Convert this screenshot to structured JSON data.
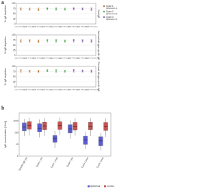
{
  "chart_data": [
    {
      "type": "errorbar",
      "panel_label": "a",
      "y_label": "% IgE depletion",
      "side_label": "Total IgE",
      "categories": [
        "Cycle 1 Fraction 1",
        "Cycle 1 Fraction 2",
        "Cycle 1 Fraction 3",
        "Cycle 2 Fraction 1",
        "Cycle 2 Fraction 2",
        "Cycle 2 Fraction 3",
        "Cycle 3 Fraction 1",
        "Cycle 3 Fraction 2",
        "Cycle 3 Fraction 3"
      ],
      "values": [
        73,
        72,
        71,
        74,
        73,
        72,
        74,
        73,
        72
      ],
      "errors": [
        6,
        5,
        6,
        5,
        6,
        5,
        6,
        5,
        6
      ],
      "colors": [
        "#b5651d",
        "#b5651d",
        "#b5651d",
        "#3aa13a",
        "#3aa13a",
        "#3aa13a",
        "#7b52ab",
        "#7b52ab",
        "#7b52ab"
      ],
      "ylim": [
        0,
        100
      ],
      "yticks": [
        0,
        25,
        50,
        75,
        100
      ],
      "grid": true,
      "legend": [
        {
          "name": "Cycle 1",
          "note": "(Apheresis 1-3)",
          "color": "#b5651d"
        },
        {
          "name": "Cycle 2",
          "note": "(Apheresis 4-6)",
          "color": "#3aa13a"
        },
        {
          "name": "Cycle 3",
          "note": "(Apheresis 7-9)",
          "color": "#7b52ab"
        }
      ]
    },
    {
      "type": "errorbar",
      "y_label": "% IgE depletion",
      "side_label": "Seasonal allergen-specific IgE",
      "categories": [
        "Cycle 1 Fraction 1",
        "Cycle 1 Fraction 2",
        "Cycle 1 Fraction 3",
        "Cycle 2 Fraction 1",
        "Cycle 2 Fraction 2",
        "Cycle 2 Fraction 3",
        "Cycle 3 Fraction 1",
        "Cycle 3 Fraction 2",
        "Cycle 3 Fraction 3"
      ],
      "values": [
        70,
        71,
        69,
        72,
        71,
        70,
        72,
        71,
        70
      ],
      "errors": [
        7,
        6,
        7,
        6,
        7,
        6,
        7,
        6,
        7
      ],
      "colors": [
        "#b5651d",
        "#b5651d",
        "#b5651d",
        "#3aa13a",
        "#3aa13a",
        "#3aa13a",
        "#7b52ab",
        "#7b52ab",
        "#7b52ab"
      ],
      "ylim": [
        0,
        100
      ],
      "yticks": [
        0,
        25,
        50,
        75,
        100
      ],
      "grid": true
    },
    {
      "type": "errorbar",
      "y_label": "% IgE depletion",
      "side_label": "Perennial allergen-specific IgE",
      "categories": [
        "Cycle 1 Fraction 1",
        "Cycle 1 Fraction 2",
        "Cycle 1 Fraction 3",
        "Cycle 2 Fraction 1",
        "Cycle 2 Fraction 2",
        "Cycle 2 Fraction 3",
        "Cycle 3 Fraction 1",
        "Cycle 3 Fraction 2",
        "Cycle 3 Fraction 3"
      ],
      "values": [
        78,
        77,
        76,
        79,
        78,
        77,
        79,
        78,
        77
      ],
      "errors": [
        6,
        5,
        6,
        5,
        6,
        5,
        6,
        5,
        6
      ],
      "colors": [
        "#b5651d",
        "#b5651d",
        "#b5651d",
        "#3aa13a",
        "#3aa13a",
        "#3aa13a",
        "#7b52ab",
        "#7b52ab",
        "#7b52ab"
      ],
      "ylim": [
        0,
        100
      ],
      "yticks": [
        0,
        25,
        50,
        75,
        100
      ],
      "grid": true
    },
    {
      "type": "box",
      "panel_label": "b",
      "y_label": "IgE concentration [U/ml]",
      "log_scale": true,
      "categories": [
        "Specific IgE pre",
        "Cycle 1 pre",
        "Cycle 1 post",
        "Cycle 2 pre",
        "Cycle 2 post",
        "Cycle 3 post"
      ],
      "ylim": [
        1,
        5000
      ],
      "yticks": [
        1,
        10,
        100,
        1000
      ],
      "grid": false,
      "series": [
        {
          "name": "Apheresis",
          "color": "#5b5bd6",
          "boxes": [
            [
              50,
              150,
              300,
              700,
              1500
            ],
            [
              40,
              120,
              250,
              600,
              1400
            ],
            [
              5,
              15,
              30,
              60,
              150
            ],
            [
              30,
              100,
              220,
              500,
              1200
            ],
            [
              4,
              10,
              25,
              50,
              120
            ],
            [
              3,
              8,
              20,
              45,
              100
            ]
          ]
        },
        {
          "name": "Control",
          "color": "#c85050",
          "boxes": [
            [
              60,
              200,
              400,
              900,
              2000
            ],
            [
              50,
              180,
              380,
              850,
              1900
            ],
            [
              60,
              190,
              400,
              880,
              2100
            ],
            [
              55,
              170,
              360,
              800,
              1800
            ],
            [
              50,
              180,
              370,
              820,
              1900
            ],
            [
              45,
              160,
              350,
              780,
              1700
            ]
          ]
        }
      ]
    }
  ]
}
